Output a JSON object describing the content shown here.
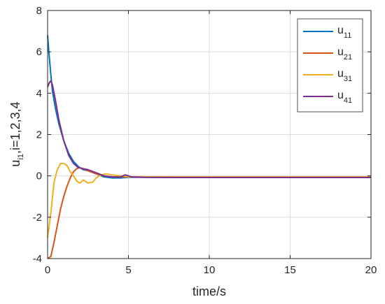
{
  "chart_data": {
    "type": "line",
    "xlabel": "time/s",
    "ylabel": "u",
    "ylabel_sub": "i1",
    "ylabel_tail": ",i=1,2,3,4",
    "xlim": [
      0,
      20
    ],
    "ylim": [
      -4,
      8
    ],
    "xticks": [
      "0",
      "5",
      "10",
      "15",
      "20"
    ],
    "yticks": [
      "-4",
      "-2",
      "0",
      "2",
      "4",
      "6",
      "8"
    ],
    "grid": true,
    "legend_position": "top-right",
    "series": [
      {
        "name": "u",
        "subscript": "11",
        "color": "#0072BD",
        "x": [
          0,
          0.1,
          0.2,
          0.3,
          0.5,
          0.7,
          1.0,
          1.3,
          1.6,
          1.9,
          2.2,
          2.5,
          3.0,
          3.5,
          4.0,
          4.5,
          5.0,
          5.5,
          6.0,
          8,
          10,
          15,
          20
        ],
        "y": [
          6.8,
          5.8,
          4.9,
          4.1,
          3.2,
          2.5,
          1.7,
          1.1,
          0.7,
          0.45,
          0.3,
          0.25,
          0.1,
          -0.05,
          -0.1,
          -0.1,
          -0.07,
          -0.07,
          -0.07,
          -0.08,
          -0.08,
          -0.08,
          -0.08
        ]
      },
      {
        "name": "u",
        "subscript": "21",
        "color": "#D95319",
        "x": [
          0,
          0.2,
          0.4,
          0.6,
          0.8,
          1.0,
          1.2,
          1.4,
          1.6,
          1.8,
          2.0,
          2.2,
          2.5,
          3.0,
          3.5,
          4.0,
          4.5,
          5.0,
          6.0,
          8,
          10,
          15,
          20
        ],
        "y": [
          -4.0,
          -3.9,
          -3.2,
          -2.4,
          -1.6,
          -1.0,
          -0.5,
          -0.1,
          0.2,
          0.35,
          0.4,
          0.35,
          0.25,
          0.1,
          0.0,
          -0.05,
          -0.05,
          -0.05,
          -0.05,
          -0.05,
          -0.05,
          -0.05,
          -0.05
        ]
      },
      {
        "name": "u",
        "subscript": "31",
        "color": "#EDB120",
        "x": [
          0,
          0.2,
          0.4,
          0.6,
          0.8,
          1.0,
          1.2,
          1.4,
          1.6,
          1.8,
          2.0,
          2.2,
          2.5,
          2.8,
          3.0,
          3.3,
          3.6,
          4.0,
          4.5,
          5.0,
          6.0,
          8,
          10,
          15,
          20
        ],
        "y": [
          -3.0,
          -1.8,
          -0.3,
          0.3,
          0.6,
          0.6,
          0.5,
          0.2,
          0.0,
          -0.25,
          -0.35,
          -0.2,
          -0.35,
          -0.3,
          -0.1,
          0.05,
          0.1,
          0.05,
          0.0,
          -0.05,
          -0.05,
          -0.05,
          -0.05,
          -0.05,
          -0.05
        ]
      },
      {
        "name": "u",
        "subscript": "41",
        "color": "#7E2F8E",
        "x": [
          0,
          0.1,
          0.2,
          0.3,
          0.5,
          0.7,
          1.0,
          1.3,
          1.6,
          1.9,
          2.2,
          2.5,
          3.0,
          3.5,
          4.0,
          4.5,
          4.8,
          5.2,
          6.0,
          8,
          10,
          15,
          20
        ],
        "y": [
          4.3,
          4.5,
          4.6,
          4.4,
          3.6,
          2.7,
          1.7,
          1.0,
          0.6,
          0.4,
          0.35,
          0.3,
          0.15,
          0.0,
          -0.05,
          -0.05,
          0.05,
          -0.05,
          -0.07,
          -0.08,
          -0.08,
          -0.08,
          -0.08
        ]
      }
    ]
  }
}
